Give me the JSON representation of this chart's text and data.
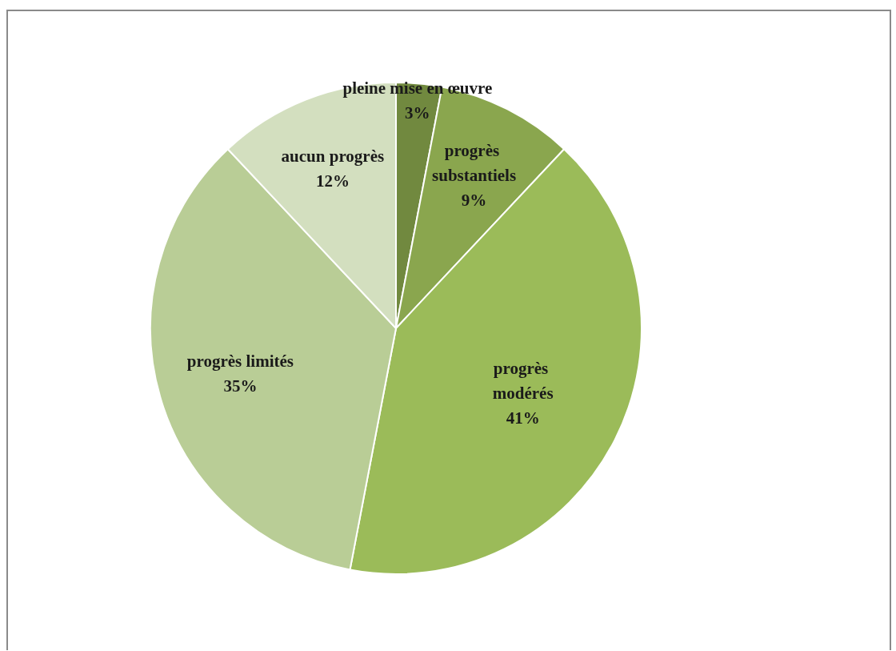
{
  "chart_data": {
    "type": "pie",
    "categories": [
      "pleine mise en œuvre",
      "progrès substantiels",
      "progrès modérés",
      "progrès limités",
      "aucun progrès"
    ],
    "values": [
      3,
      9,
      41,
      35,
      12
    ],
    "value_labels": [
      "3%",
      "9%",
      "41%",
      "35%",
      "12%"
    ],
    "colors": [
      "#71893f",
      "#8aa64e",
      "#9bbb59",
      "#b9cd96",
      "#d3dfbf"
    ],
    "legend": false
  }
}
